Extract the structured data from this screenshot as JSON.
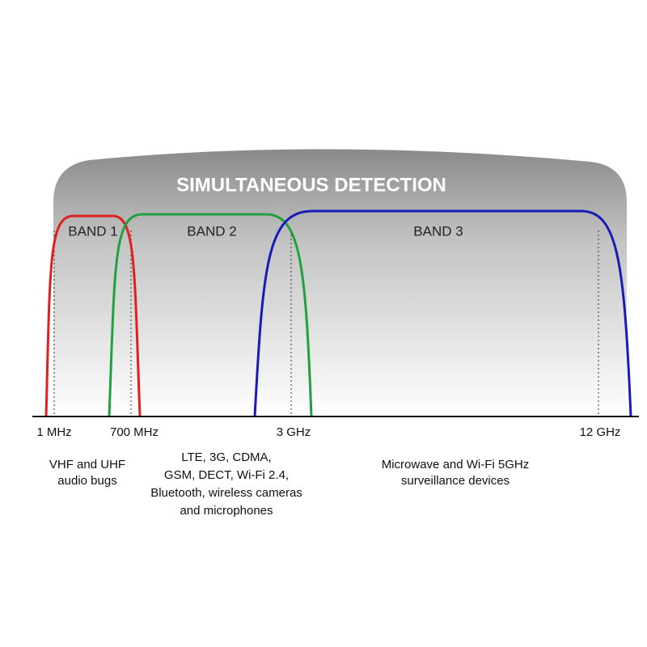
{
  "title": "SIMULTANEOUS DETECTION",
  "bands": [
    {
      "label": "BAND 1"
    },
    {
      "label": "BAND 2"
    },
    {
      "label": "BAND 3"
    }
  ],
  "frequencies": [
    {
      "label": "1 MHz"
    },
    {
      "label": "700 MHz"
    },
    {
      "label": "3 GHz"
    },
    {
      "label": "12 GHz"
    }
  ],
  "descriptions": [
    {
      "lines": [
        "VHF and UHF",
        "audio bugs"
      ]
    },
    {
      "lines": [
        "LTE, 3G, CDMA,",
        "GSM, DECT, Wi-Fi 2.4,",
        "Bluetooth, wireless cameras",
        "and microphones"
      ]
    },
    {
      "lines": [
        "Microwave and Wi-Fi 5GHz",
        "surveillance devices"
      ]
    }
  ]
}
